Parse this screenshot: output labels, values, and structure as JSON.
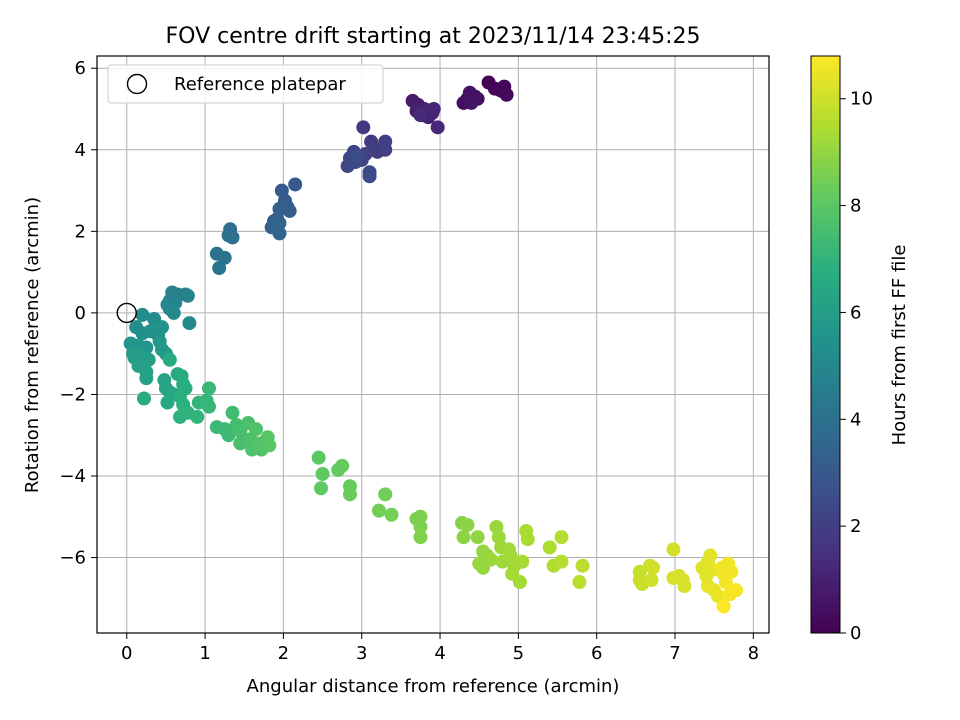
{
  "chart_data": {
    "type": "scatter",
    "title": "FOV centre drift starting at 2023/11/14 23:45:25",
    "xlabel": "Angular distance from reference (arcmin)",
    "ylabel": "Rotation from reference (arcmin)",
    "xlim": [
      -0.38,
      8.2
    ],
    "ylim": [
      -7.85,
      6.3
    ],
    "xticks": [
      0,
      1,
      2,
      3,
      4,
      5,
      6,
      7,
      8
    ],
    "yticks": [
      -6,
      -4,
      -2,
      0,
      2,
      4,
      6
    ],
    "grid": true,
    "legend": {
      "location": "upper-left",
      "entries": [
        "Reference platepar"
      ]
    },
    "reference_point": {
      "name": "Reference platepar",
      "x": 0,
      "y": 0,
      "marker": "hollow-circle"
    },
    "colorbar": {
      "label": "Hours from first FF file",
      "colormap": "viridis",
      "min": 0,
      "max": 10.8,
      "ticks": [
        0,
        2,
        4,
        6,
        8,
        10
      ]
    },
    "series": [
      {
        "color_by": "hours",
        "points": [
          {
            "x": 4.62,
            "y": 5.65,
            "c": 0.05
          },
          {
            "x": 4.7,
            "y": 5.5,
            "c": 0.1
          },
          {
            "x": 4.78,
            "y": 5.45,
            "c": 0.15
          },
          {
            "x": 4.82,
            "y": 5.55,
            "c": 0.2
          },
          {
            "x": 4.85,
            "y": 5.35,
            "c": 0.25
          },
          {
            "x": 4.4,
            "y": 5.35,
            "c": 0.3
          },
          {
            "x": 4.35,
            "y": 5.25,
            "c": 0.35
          },
          {
            "x": 4.3,
            "y": 5.15,
            "c": 0.4
          },
          {
            "x": 4.48,
            "y": 5.25,
            "c": 0.45
          },
          {
            "x": 4.38,
            "y": 5.4,
            "c": 0.5
          },
          {
            "x": 4.45,
            "y": 5.3,
            "c": 0.55
          },
          {
            "x": 4.4,
            "y": 5.15,
            "c": 0.6
          },
          {
            "x": 3.65,
            "y": 5.2,
            "c": 0.8
          },
          {
            "x": 3.72,
            "y": 5.1,
            "c": 0.85
          },
          {
            "x": 3.7,
            "y": 4.95,
            "c": 0.9
          },
          {
            "x": 3.78,
            "y": 4.85,
            "c": 0.95
          },
          {
            "x": 3.8,
            "y": 5.0,
            "c": 1.0
          },
          {
            "x": 3.85,
            "y": 4.8,
            "c": 1.05
          },
          {
            "x": 3.9,
            "y": 4.9,
            "c": 1.1
          },
          {
            "x": 3.92,
            "y": 5.0,
            "c": 1.15
          },
          {
            "x": 3.97,
            "y": 4.55,
            "c": 1.2
          },
          {
            "x": 3.75,
            "y": 4.85,
            "c": 1.25
          },
          {
            "x": 3.02,
            "y": 4.55,
            "c": 1.8
          },
          {
            "x": 3.12,
            "y": 4.2,
            "c": 1.85
          },
          {
            "x": 3.15,
            "y": 4.05,
            "c": 1.9
          },
          {
            "x": 3.2,
            "y": 3.95,
            "c": 1.95
          },
          {
            "x": 3.3,
            "y": 4.2,
            "c": 2.0
          },
          {
            "x": 3.3,
            "y": 4.0,
            "c": 2.05
          },
          {
            "x": 3.05,
            "y": 3.9,
            "c": 2.1
          },
          {
            "x": 3.0,
            "y": 3.75,
            "c": 2.15
          },
          {
            "x": 2.9,
            "y": 3.95,
            "c": 2.2
          },
          {
            "x": 2.85,
            "y": 3.8,
            "c": 2.25
          },
          {
            "x": 2.92,
            "y": 3.7,
            "c": 2.3
          },
          {
            "x": 2.82,
            "y": 3.6,
            "c": 2.35
          },
          {
            "x": 3.1,
            "y": 3.45,
            "c": 2.4
          },
          {
            "x": 3.1,
            "y": 3.35,
            "c": 2.45
          },
          {
            "x": 2.95,
            "y": 3.85,
            "c": 2.5
          },
          {
            "x": 2.15,
            "y": 3.15,
            "c": 3.0
          },
          {
            "x": 1.98,
            "y": 3.0,
            "c": 3.05
          },
          {
            "x": 2.02,
            "y": 2.75,
            "c": 3.1
          },
          {
            "x": 2.05,
            "y": 2.6,
            "c": 3.15
          },
          {
            "x": 2.08,
            "y": 2.5,
            "c": 3.2
          },
          {
            "x": 1.95,
            "y": 2.55,
            "c": 3.25
          },
          {
            "x": 1.92,
            "y": 2.3,
            "c": 3.3
          },
          {
            "x": 1.88,
            "y": 2.25,
            "c": 3.35
          },
          {
            "x": 1.85,
            "y": 2.1,
            "c": 3.4
          },
          {
            "x": 1.95,
            "y": 2.2,
            "c": 3.45
          },
          {
            "x": 1.95,
            "y": 1.95,
            "c": 3.5
          },
          {
            "x": 1.32,
            "y": 2.05,
            "c": 3.9
          },
          {
            "x": 1.3,
            "y": 1.9,
            "c": 3.95
          },
          {
            "x": 1.35,
            "y": 1.85,
            "c": 4.0
          },
          {
            "x": 1.15,
            "y": 1.45,
            "c": 4.05
          },
          {
            "x": 1.25,
            "y": 1.35,
            "c": 4.1
          },
          {
            "x": 1.18,
            "y": 1.1,
            "c": 4.15
          },
          {
            "x": 0.58,
            "y": 0.5,
            "c": 4.6
          },
          {
            "x": 0.65,
            "y": 0.45,
            "c": 4.65
          },
          {
            "x": 0.75,
            "y": 0.45,
            "c": 4.7
          },
          {
            "x": 0.78,
            "y": 0.42,
            "c": 4.75
          },
          {
            "x": 0.55,
            "y": 0.3,
            "c": 4.8
          },
          {
            "x": 0.62,
            "y": 0.25,
            "c": 4.85
          },
          {
            "x": 0.52,
            "y": 0.2,
            "c": 4.9
          },
          {
            "x": 0.55,
            "y": 0.1,
            "c": 4.95
          },
          {
            "x": 0.6,
            "y": 0.0,
            "c": 5.0
          },
          {
            "x": 0.8,
            "y": -0.25,
            "c": 5.05
          },
          {
            "x": 0.2,
            "y": -0.05,
            "c": 5.2
          },
          {
            "x": 0.35,
            "y": -0.15,
            "c": 5.25
          },
          {
            "x": 0.12,
            "y": -0.35,
            "c": 5.3
          },
          {
            "x": 0.2,
            "y": -0.5,
            "c": 5.35
          },
          {
            "x": 0.3,
            "y": -0.45,
            "c": 5.4
          },
          {
            "x": 0.45,
            "y": -0.35,
            "c": 5.45
          },
          {
            "x": 0.4,
            "y": -0.55,
            "c": 5.5
          },
          {
            "x": 0.05,
            "y": -0.75,
            "c": 5.55
          },
          {
            "x": 0.15,
            "y": -0.8,
            "c": 5.6
          },
          {
            "x": 0.25,
            "y": -0.85,
            "c": 5.65
          },
          {
            "x": 0.42,
            "y": -0.7,
            "c": 5.7
          },
          {
            "x": 0.45,
            "y": -0.9,
            "c": 5.75
          },
          {
            "x": 0.5,
            "y": -1.0,
            "c": 5.8
          },
          {
            "x": 0.08,
            "y": -1.0,
            "c": 5.85
          },
          {
            "x": 0.1,
            "y": -1.1,
            "c": 5.9
          },
          {
            "x": 0.18,
            "y": -1.05,
            "c": 5.95
          },
          {
            "x": 0.22,
            "y": -1.2,
            "c": 6.0
          },
          {
            "x": 0.28,
            "y": -1.15,
            "c": 6.05
          },
          {
            "x": 0.15,
            "y": -1.3,
            "c": 6.1
          },
          {
            "x": 0.25,
            "y": -1.45,
            "c": 6.15
          },
          {
            "x": 0.25,
            "y": -1.6,
            "c": 6.2
          },
          {
            "x": 0.48,
            "y": -1.65,
            "c": 6.25
          },
          {
            "x": 0.5,
            "y": -1.85,
            "c": 6.3
          },
          {
            "x": 0.55,
            "y": -1.95,
            "c": 6.35
          },
          {
            "x": 0.6,
            "y": -2.0,
            "c": 6.4
          },
          {
            "x": 0.52,
            "y": -2.2,
            "c": 6.45
          },
          {
            "x": 0.55,
            "y": -1.15,
            "c": 6.5
          },
          {
            "x": 0.22,
            "y": -2.1,
            "c": 6.55
          },
          {
            "x": 0.65,
            "y": -1.5,
            "c": 6.6
          },
          {
            "x": 0.7,
            "y": -1.55,
            "c": 6.65
          },
          {
            "x": 0.72,
            "y": -1.75,
            "c": 6.7
          },
          {
            "x": 0.75,
            "y": -1.85,
            "c": 6.75
          },
          {
            "x": 0.68,
            "y": -2.05,
            "c": 6.8
          },
          {
            "x": 0.72,
            "y": -2.25,
            "c": 6.85
          },
          {
            "x": 0.68,
            "y": -2.55,
            "c": 6.9
          },
          {
            "x": 0.78,
            "y": -2.45,
            "c": 6.95
          },
          {
            "x": 0.9,
            "y": -2.55,
            "c": 7.0
          },
          {
            "x": 0.92,
            "y": -2.2,
            "c": 7.05
          },
          {
            "x": 1.02,
            "y": -2.15,
            "c": 7.1
          },
          {
            "x": 1.05,
            "y": -2.3,
            "c": 7.15
          },
          {
            "x": 1.05,
            "y": -1.85,
            "c": 7.2
          },
          {
            "x": 1.15,
            "y": -2.8,
            "c": 7.25
          },
          {
            "x": 1.25,
            "y": -2.85,
            "c": 7.3
          },
          {
            "x": 1.3,
            "y": -3.0,
            "c": 7.35
          },
          {
            "x": 1.35,
            "y": -2.45,
            "c": 7.4
          },
          {
            "x": 1.4,
            "y": -2.75,
            "c": 7.45
          },
          {
            "x": 1.45,
            "y": -2.9,
            "c": 7.5
          },
          {
            "x": 1.45,
            "y": -3.2,
            "c": 7.55
          },
          {
            "x": 1.55,
            "y": -2.7,
            "c": 7.6
          },
          {
            "x": 1.58,
            "y": -3.1,
            "c": 7.65
          },
          {
            "x": 1.6,
            "y": -3.35,
            "c": 7.7
          },
          {
            "x": 1.65,
            "y": -2.85,
            "c": 7.75
          },
          {
            "x": 1.7,
            "y": -3.2,
            "c": 7.8
          },
          {
            "x": 1.72,
            "y": -3.35,
            "c": 7.85
          },
          {
            "x": 1.8,
            "y": -3.05,
            "c": 7.9
          },
          {
            "x": 1.82,
            "y": -3.25,
            "c": 7.95
          },
          {
            "x": 2.45,
            "y": -3.55,
            "c": 8.05
          },
          {
            "x": 2.5,
            "y": -3.95,
            "c": 8.1
          },
          {
            "x": 2.48,
            "y": -4.3,
            "c": 8.12
          },
          {
            "x": 2.7,
            "y": -3.85,
            "c": 8.15
          },
          {
            "x": 2.75,
            "y": -3.75,
            "c": 8.2
          },
          {
            "x": 2.85,
            "y": -4.25,
            "c": 8.25
          },
          {
            "x": 2.85,
            "y": -4.45,
            "c": 8.3
          },
          {
            "x": 3.3,
            "y": -4.45,
            "c": 8.4
          },
          {
            "x": 3.22,
            "y": -4.85,
            "c": 8.45
          },
          {
            "x": 3.38,
            "y": -4.95,
            "c": 8.5
          },
          {
            "x": 3.7,
            "y": -5.05,
            "c": 8.55
          },
          {
            "x": 3.75,
            "y": -5.0,
            "c": 8.6
          },
          {
            "x": 3.75,
            "y": -5.25,
            "c": 8.65
          },
          {
            "x": 3.75,
            "y": -5.5,
            "c": 8.7
          },
          {
            "x": 4.28,
            "y": -5.15,
            "c": 8.8
          },
          {
            "x": 4.35,
            "y": -5.2,
            "c": 8.85
          },
          {
            "x": 4.3,
            "y": -5.5,
            "c": 8.9
          },
          {
            "x": 4.48,
            "y": -5.5,
            "c": 8.95
          },
          {
            "x": 4.55,
            "y": -5.85,
            "c": 9.0
          },
          {
            "x": 4.6,
            "y": -5.95,
            "c": 9.02
          },
          {
            "x": 4.5,
            "y": -6.15,
            "c": 9.05
          },
          {
            "x": 4.55,
            "y": -6.25,
            "c": 9.08
          },
          {
            "x": 4.65,
            "y": -6.05,
            "c": 9.1
          },
          {
            "x": 4.72,
            "y": -5.25,
            "c": 9.12
          },
          {
            "x": 4.75,
            "y": -5.5,
            "c": 9.15
          },
          {
            "x": 4.78,
            "y": -5.75,
            "c": 9.18
          },
          {
            "x": 4.8,
            "y": -6.1,
            "c": 9.2
          },
          {
            "x": 4.88,
            "y": -5.8,
            "c": 9.22
          },
          {
            "x": 4.9,
            "y": -5.95,
            "c": 9.25
          },
          {
            "x": 4.95,
            "y": -6.2,
            "c": 9.28
          },
          {
            "x": 4.92,
            "y": -6.4,
            "c": 9.3
          },
          {
            "x": 5.02,
            "y": -6.6,
            "c": 9.32
          },
          {
            "x": 5.05,
            "y": -6.1,
            "c": 9.35
          },
          {
            "x": 5.1,
            "y": -5.35,
            "c": 9.38
          },
          {
            "x": 5.12,
            "y": -5.55,
            "c": 9.4
          },
          {
            "x": 5.4,
            "y": -5.75,
            "c": 9.45
          },
          {
            "x": 5.45,
            "y": -6.2,
            "c": 9.5
          },
          {
            "x": 5.55,
            "y": -5.5,
            "c": 9.55
          },
          {
            "x": 5.55,
            "y": -6.1,
            "c": 9.6
          },
          {
            "x": 5.78,
            "y": -6.6,
            "c": 9.65
          },
          {
            "x": 5.82,
            "y": -6.2,
            "c": 9.7
          },
          {
            "x": 6.55,
            "y": -6.35,
            "c": 9.85
          },
          {
            "x": 6.55,
            "y": -6.55,
            "c": 9.9
          },
          {
            "x": 6.58,
            "y": -6.65,
            "c": 9.95
          },
          {
            "x": 6.68,
            "y": -6.2,
            "c": 10.0
          },
          {
            "x": 6.7,
            "y": -6.55,
            "c": 10.02
          },
          {
            "x": 6.72,
            "y": -6.25,
            "c": 10.05
          },
          {
            "x": 6.98,
            "y": -5.8,
            "c": 10.1
          },
          {
            "x": 6.98,
            "y": -6.5,
            "c": 10.12
          },
          {
            "x": 7.05,
            "y": -6.45,
            "c": 10.15
          },
          {
            "x": 7.1,
            "y": -6.55,
            "c": 10.18
          },
          {
            "x": 7.12,
            "y": -6.7,
            "c": 10.2
          },
          {
            "x": 7.35,
            "y": -6.25,
            "c": 10.25
          },
          {
            "x": 7.4,
            "y": -6.45,
            "c": 10.3
          },
          {
            "x": 7.42,
            "y": -6.1,
            "c": 10.32
          },
          {
            "x": 7.45,
            "y": -5.95,
            "c": 10.35
          },
          {
            "x": 7.48,
            "y": -6.3,
            "c": 10.38
          },
          {
            "x": 7.42,
            "y": -6.7,
            "c": 10.4
          },
          {
            "x": 7.5,
            "y": -6.8,
            "c": 10.45
          },
          {
            "x": 7.55,
            "y": -6.95,
            "c": 10.5
          },
          {
            "x": 7.6,
            "y": -6.25,
            "c": 10.55
          },
          {
            "x": 7.62,
            "y": -6.4,
            "c": 10.58
          },
          {
            "x": 7.68,
            "y": -6.15,
            "c": 10.6
          },
          {
            "x": 7.65,
            "y": -6.6,
            "c": 10.62
          },
          {
            "x": 7.72,
            "y": -6.35,
            "c": 10.65
          },
          {
            "x": 7.7,
            "y": -6.9,
            "c": 10.7
          },
          {
            "x": 7.78,
            "y": -6.8,
            "c": 10.72
          },
          {
            "x": 7.62,
            "y": -7.2,
            "c": 10.75
          }
        ]
      }
    ]
  }
}
